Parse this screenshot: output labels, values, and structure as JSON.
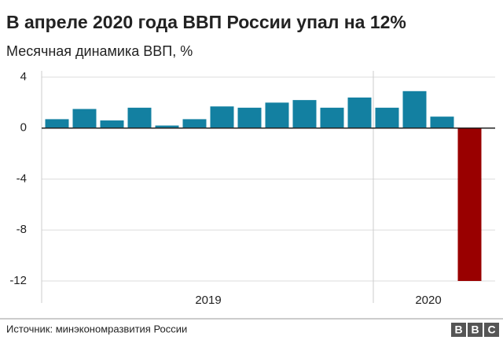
{
  "chart_data": {
    "type": "bar",
    "title": "В апреле 2020 года ВВП России упал на 12%",
    "subtitle": "Месячная динамика ВВП, %",
    "categories": [
      null,
      null,
      null,
      null,
      null,
      null,
      null,
      null,
      null,
      null,
      null,
      null,
      null,
      null,
      null,
      null
    ],
    "values": [
      0.7,
      1.5,
      0.6,
      1.6,
      0.2,
      0.7,
      1.7,
      1.6,
      2.0,
      2.2,
      1.6,
      2.4,
      1.6,
      2.9,
      0.9,
      -12
    ],
    "colors": [
      "#1380a1",
      "#1380a1",
      "#1380a1",
      "#1380a1",
      "#1380a1",
      "#1380a1",
      "#1380a1",
      "#1380a1",
      "#1380a1",
      "#1380a1",
      "#1380a1",
      "#1380a1",
      "#1380a1",
      "#1380a1",
      "#1380a1",
      "#990000"
    ],
    "groups": [
      {
        "label": "2019",
        "span": 12
      },
      {
        "label": "2020",
        "span": 4
      }
    ],
    "ylim": [
      -12,
      4
    ],
    "yticks": [
      4,
      0,
      -4,
      -8,
      -12
    ],
    "grid": true,
    "source": "Источник: минэкономразвития России",
    "logo": [
      "B",
      "B",
      "C"
    ]
  }
}
